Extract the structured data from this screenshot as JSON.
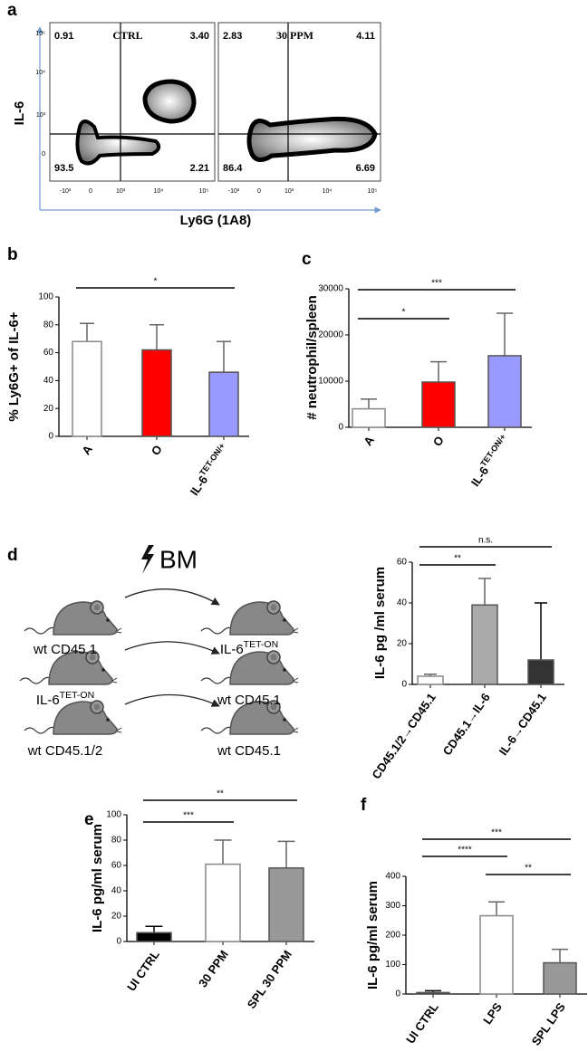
{
  "panel_labels": [
    "a",
    "b",
    "c",
    "d",
    "e",
    "f"
  ],
  "flow": {
    "y_label": "IL-6",
    "x_label": "Ly6G (1A8)",
    "y_tick_labels": [
      "10⁵",
      "10⁴",
      "10³",
      "0"
    ],
    "x_tick_labels": [
      "-10³",
      "0",
      "10³",
      "10⁴",
      "10⁵"
    ],
    "plots": [
      {
        "title": "CTRL",
        "quadrants": {
          "top_left": "0.91",
          "top_right": "3.40",
          "bottom_left": "93.5",
          "bottom_right": "2.21"
        }
      },
      {
        "title": "30 PPM",
        "quadrants": {
          "top_left": "2.83",
          "top_right": "4.11",
          "bottom_left": "86.4",
          "bottom_right": "6.69"
        }
      }
    ]
  },
  "diagram": {
    "bm": "BM",
    "rows": [
      {
        "donor": "wt CD45.1",
        "recipient": "IL-6",
        "recipient_sup": "TET-ON"
      },
      {
        "donor": "IL-6",
        "donor_sup": "TET-ON",
        "recipient": "wt CD45.1"
      },
      {
        "donor": "wt CD45.1/2",
        "recipient": "wt CD45.1"
      }
    ]
  },
  "chart_data": [
    {
      "type": "bar",
      "y_label": "% Ly6G+ of IL-6+",
      "categories": [
        "A",
        "O",
        "IL-6"
      ],
      "category_sups": [
        null,
        null,
        "TET-ON/+"
      ],
      "values": [
        68,
        62,
        46
      ],
      "errors": [
        13,
        18,
        22
      ],
      "colors": [
        "#ffffff",
        "#ff0000",
        "#9999ff"
      ],
      "ylim": [
        0,
        100
      ],
      "yticks": [
        0,
        20,
        40,
        60,
        80,
        100
      ],
      "significance": [
        {
          "between": [
            "A",
            "IL-6"
          ],
          "label": "*"
        }
      ]
    },
    {
      "type": "bar",
      "y_label": "# neutrophil/spleen",
      "categories": [
        "A",
        "O",
        "IL-6"
      ],
      "category_sups": [
        null,
        null,
        "TET-ON/+"
      ],
      "values": [
        4000,
        9800,
        15500
      ],
      "errors": [
        2100,
        4400,
        9200
      ],
      "colors": [
        "#ffffff",
        "#ff0000",
        "#9999ff"
      ],
      "ylim": [
        0,
        30000
      ],
      "yticks": [
        0,
        10000,
        20000,
        30000
      ],
      "significance": [
        {
          "between": [
            "A",
            "O"
          ],
          "label": "*"
        },
        {
          "between": [
            "A",
            "IL-6"
          ],
          "label": "***"
        }
      ]
    },
    {
      "type": "bar",
      "y_label": "IL-6 pg /ml serum",
      "categories": [
        "CD45.1/2→CD45.1",
        "CD45.1→IL-6",
        "IL-6→CD45.1"
      ],
      "values": [
        4,
        39,
        12
      ],
      "errors": [
        1,
        13,
        28
      ],
      "colors": [
        "#ffffff",
        "#aaaaaa",
        "#333333"
      ],
      "ylim": [
        0,
        60
      ],
      "yticks": [
        0,
        20,
        40,
        60
      ],
      "significance": [
        {
          "between": [
            "CD45.1/2→CD45.1",
            "CD45.1→IL-6"
          ],
          "label": "**"
        },
        {
          "between": [
            "CD45.1/2→CD45.1",
            "IL-6→CD45.1"
          ],
          "label": "n.s."
        }
      ]
    },
    {
      "type": "bar",
      "y_label": "IL-6 pg/ml serum",
      "categories": [
        "UI CTRL",
        "30 PPM",
        "SPL 30 PPM"
      ],
      "values": [
        7,
        61,
        58
      ],
      "errors": [
        5,
        19,
        21
      ],
      "colors": [
        "#000000",
        "#ffffff",
        "#999999"
      ],
      "ylim": [
        0,
        100
      ],
      "yticks": [
        0,
        20,
        40,
        60,
        80,
        100
      ],
      "significance": [
        {
          "between": [
            "UI CTRL",
            "30 PPM"
          ],
          "label": "***"
        },
        {
          "between": [
            "UI CTRL",
            "SPL 30 PPM"
          ],
          "label": "**"
        }
      ]
    },
    {
      "type": "bar",
      "y_label": "IL-6 pg/ml serum",
      "categories": [
        "UI CTRL",
        "LPS",
        "SPL LPS"
      ],
      "values": [
        5,
        266,
        106
      ],
      "errors": [
        6,
        47,
        46
      ],
      "colors": [
        "#000000",
        "#ffffff",
        "#999999"
      ],
      "ylim": [
        0,
        400
      ],
      "yticks": [
        0,
        100,
        200,
        300,
        400
      ],
      "significance": [
        {
          "between": [
            "UI CTRL",
            "LPS"
          ],
          "label": "****"
        },
        {
          "between": [
            "UI CTRL",
            "SPL LPS"
          ],
          "label": "***"
        },
        {
          "between": [
            "LPS",
            "SPL LPS"
          ],
          "label": "**"
        }
      ]
    }
  ]
}
